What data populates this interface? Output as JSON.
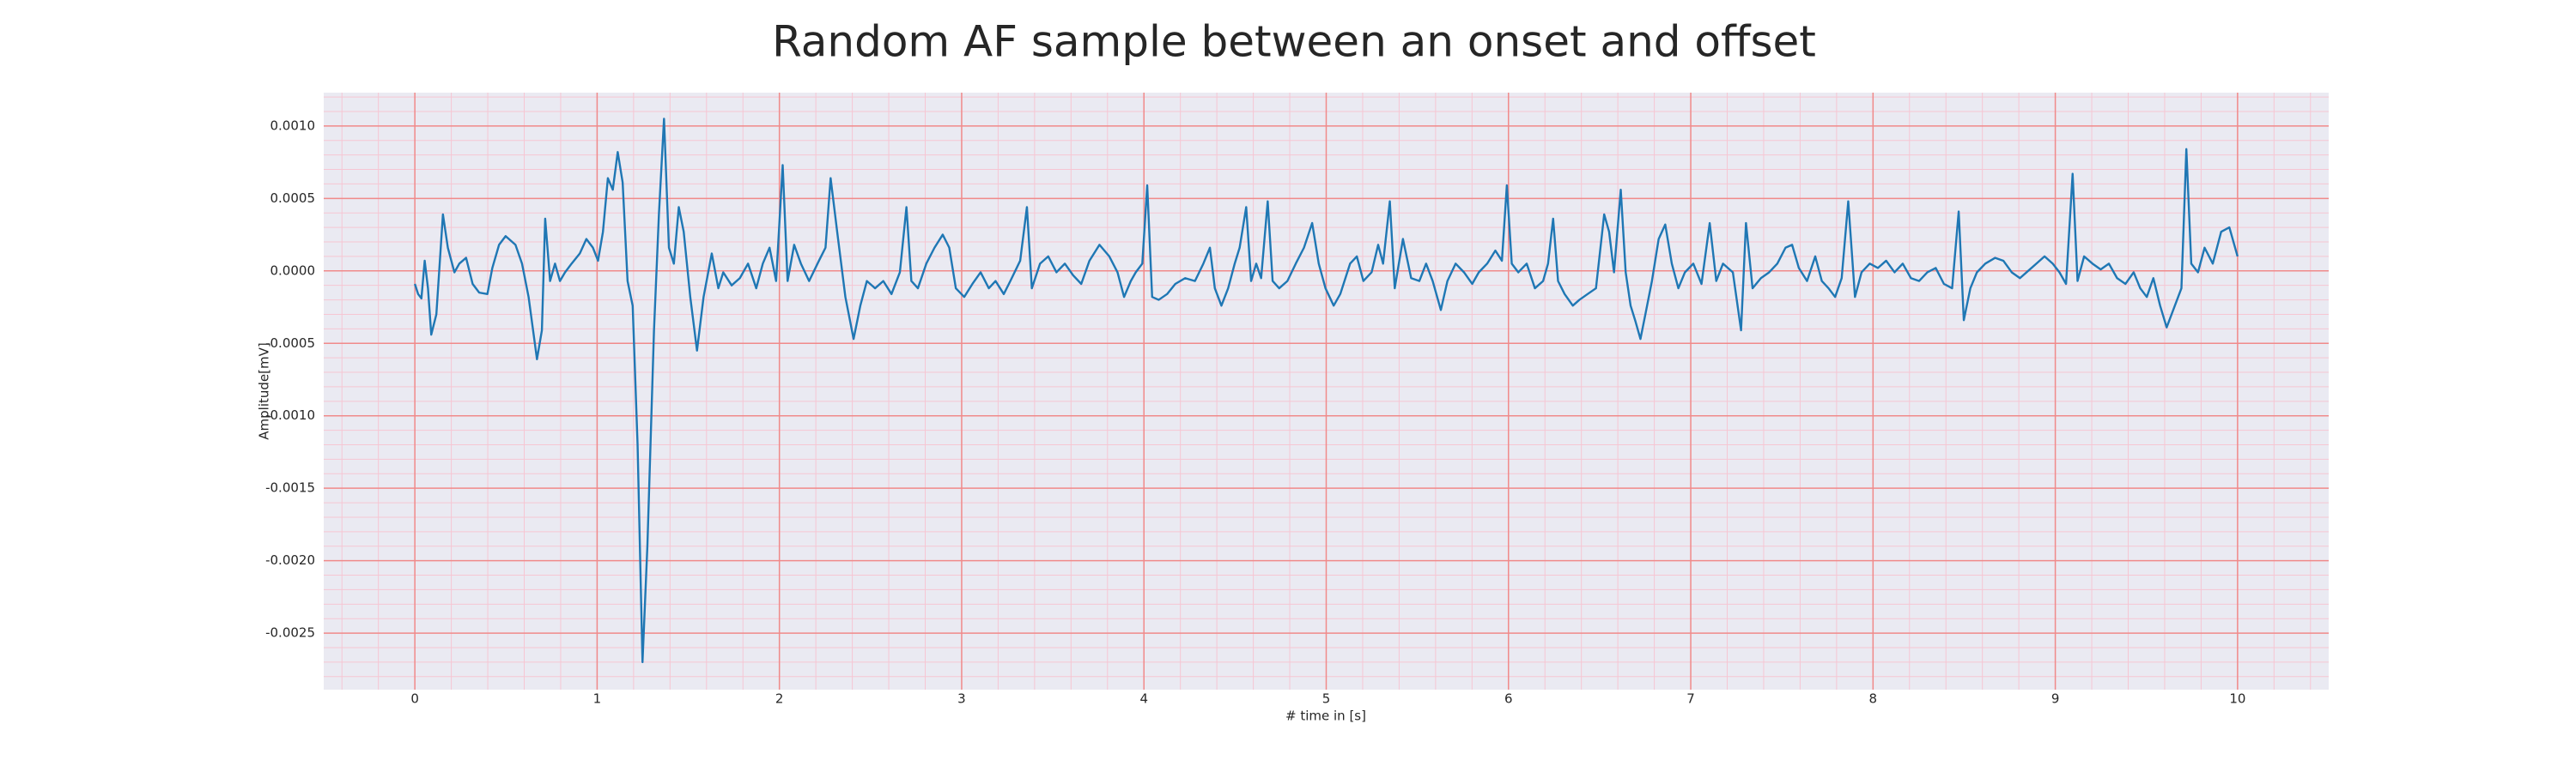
{
  "chart_data": {
    "type": "line",
    "title": "Random AF sample between an onset and offset",
    "xlabel": "# time in [s]",
    "ylabel": "Amplitude[mV]",
    "color": "#1f77b4",
    "grid": true,
    "minor_grid": true,
    "minor_divisions": 5,
    "xlim": [
      -0.5,
      10.5
    ],
    "ylim": [
      -0.00289,
      0.00123
    ],
    "xticks": [
      0,
      1,
      2,
      3,
      4,
      5,
      6,
      7,
      8,
      9,
      10
    ],
    "yticks": [
      {
        "value": -0.0025,
        "label": "-0.0025"
      },
      {
        "value": -0.002,
        "label": "-0.0020"
      },
      {
        "value": -0.0015,
        "label": "-0.0015"
      },
      {
        "value": -0.001,
        "label": "-0.0010"
      },
      {
        "value": -0.0005,
        "label": "-0.0005"
      },
      {
        "value": 0,
        "label": "0.0000"
      },
      {
        "value": 0.0005,
        "label": "0.0005"
      },
      {
        "value": 0.001,
        "label": "0.0010"
      }
    ],
    "x": [
      0,
      0.018,
      0.036,
      0.054,
      0.072,
      0.09,
      0.118,
      0.154,
      0.181,
      0.217,
      0.244,
      0.281,
      0.317,
      0.353,
      0.398,
      0.425,
      0.462,
      0.498,
      0.552,
      0.588,
      0.624,
      0.67,
      0.697,
      0.715,
      0.742,
      0.769,
      0.796,
      0.824,
      0.86,
      0.905,
      0.941,
      0.977,
      1.005,
      1.032,
      1.059,
      1.086,
      1.113,
      1.14,
      1.167,
      1.195,
      1.222,
      1.249,
      1.276,
      1.312,
      1.339,
      1.367,
      1.394,
      1.421,
      1.448,
      1.475,
      1.511,
      1.548,
      1.584,
      1.629,
      1.665,
      1.692,
      1.738,
      1.783,
      1.828,
      1.873,
      1.909,
      1.946,
      1.982,
      2.018,
      2.045,
      2.081,
      2.118,
      2.163,
      2.217,
      2.253,
      2.281,
      2.317,
      2.362,
      2.407,
      2.444,
      2.48,
      2.525,
      2.57,
      2.615,
      2.661,
      2.697,
      2.724,
      2.76,
      2.806,
      2.851,
      2.896,
      2.932,
      2.968,
      3.014,
      3.059,
      3.104,
      3.149,
      3.186,
      3.231,
      3.267,
      3.321,
      3.358,
      3.385,
      3.43,
      3.475,
      3.52,
      3.566,
      3.611,
      3.656,
      3.701,
      3.756,
      3.81,
      3.855,
      3.891,
      3.928,
      3.955,
      3.991,
      4.018,
      4.045,
      4.081,
      4.127,
      4.172,
      4.226,
      4.28,
      4.326,
      4.362,
      4.389,
      4.425,
      4.462,
      4.498,
      4.525,
      4.561,
      4.588,
      4.616,
      4.643,
      4.679,
      4.706,
      4.742,
      4.787,
      4.833,
      4.878,
      4.923,
      4.959,
      4.996,
      5.041,
      5.077,
      5.131,
      5.168,
      5.204,
      5.249,
      5.285,
      5.312,
      5.349,
      5.376,
      5.421,
      5.466,
      5.511,
      5.548,
      5.584,
      5.629,
      5.665,
      5.71,
      5.756,
      5.801,
      5.837,
      5.883,
      5.928,
      5.964,
      5.991,
      6.018,
      6.054,
      6.1,
      6.145,
      6.19,
      6.217,
      6.245,
      6.272,
      6.308,
      6.353,
      6.389,
      6.434,
      6.48,
      6.525,
      6.552,
      6.579,
      6.616,
      6.643,
      6.67,
      6.697,
      6.724,
      6.751,
      6.787,
      6.824,
      6.86,
      6.896,
      6.932,
      6.968,
      7.014,
      7.059,
      7.104,
      7.14,
      7.177,
      7.231,
      7.276,
      7.303,
      7.339,
      7.385,
      7.43,
      7.475,
      7.52,
      7.556,
      7.593,
      7.638,
      7.683,
      7.719,
      7.756,
      7.792,
      7.828,
      7.864,
      7.901,
      7.937,
      7.982,
      8.027,
      8.072,
      8.118,
      8.163,
      8.208,
      8.253,
      8.298,
      8.344,
      8.389,
      8.434,
      8.47,
      8.498,
      8.534,
      8.57,
      8.616,
      8.67,
      8.715,
      8.761,
      8.806,
      8.851,
      8.896,
      8.941,
      8.986,
      9.023,
      9.059,
      9.095,
      9.122,
      9.158,
      9.204,
      9.249,
      9.294,
      9.339,
      9.385,
      9.43,
      9.466,
      9.502,
      9.538,
      9.575,
      9.611,
      9.656,
      9.692,
      9.719,
      9.746,
      9.783,
      9.819,
      9.864,
      9.91,
      9.955,
      10.0
    ],
    "values": [
      -9e-05,
      -0.00016,
      -0.00019,
      7e-05,
      -0.00012,
      -0.00044,
      -0.0003,
      0.00039,
      0.00016,
      -1e-05,
      5e-05,
      9e-05,
      -9e-05,
      -0.00015,
      -0.00016,
      2e-05,
      0.00018,
      0.00024,
      0.00018,
      5e-05,
      -0.00018,
      -0.00061,
      -0.00041,
      0.00036,
      -7e-05,
      5e-05,
      -7e-05,
      -1e-05,
      5e-05,
      0.00012,
      0.00022,
      0.00016,
      7e-05,
      0.00027,
      0.00064,
      0.00056,
      0.00082,
      0.00061,
      -7e-05,
      -0.00024,
      -0.0012,
      -0.0027,
      -0.00189,
      -0.00041,
      0.00039,
      0.00105,
      0.00016,
      5e-05,
      0.00044,
      0.00027,
      -0.00018,
      -0.00055,
      -0.00018,
      0.00012,
      -0.00012,
      -1e-05,
      -0.0001,
      -5e-05,
      5e-05,
      -0.00012,
      5e-05,
      0.00016,
      -7e-05,
      0.00073,
      -7e-05,
      0.00018,
      5e-05,
      -7e-05,
      7e-05,
      0.00016,
      0.00064,
      0.00027,
      -0.00018,
      -0.00047,
      -0.00024,
      -7e-05,
      -0.00012,
      -7e-05,
      -0.00016,
      -1e-05,
      0.00044,
      -7e-05,
      -0.00012,
      5e-05,
      0.00016,
      0.00025,
      0.00016,
      -0.00012,
      -0.00018,
      -9e-05,
      -1e-05,
      -0.00012,
      -7e-05,
      -0.00016,
      -7e-05,
      7e-05,
      0.00044,
      -0.00012,
      5e-05,
      0.0001,
      -1e-05,
      5e-05,
      -3e-05,
      -9e-05,
      7e-05,
      0.00018,
      0.0001,
      -1e-05,
      -0.00018,
      -7e-05,
      -1e-05,
      5e-05,
      0.00059,
      -0.00018,
      -0.0002,
      -0.00016,
      -9e-05,
      -5e-05,
      -7e-05,
      5e-05,
      0.00016,
      -0.00012,
      -0.00024,
      -0.00012,
      5e-05,
      0.00016,
      0.00044,
      -7e-05,
      5e-05,
      -5e-05,
      0.00048,
      -7e-05,
      -0.00012,
      -7e-05,
      5e-05,
      0.00016,
      0.00033,
      5e-05,
      -0.00012,
      -0.00024,
      -0.00016,
      5e-05,
      0.0001,
      -7e-05,
      -1e-05,
      0.00018,
      5e-05,
      0.00048,
      -0.00012,
      0.00022,
      -5e-05,
      -7e-05,
      5e-05,
      -7e-05,
      -0.00027,
      -7e-05,
      5e-05,
      -1e-05,
      -9e-05,
      -1e-05,
      5e-05,
      0.00014,
      7e-05,
      0.00059,
      5e-05,
      -1e-05,
      5e-05,
      -0.00012,
      -7e-05,
      5e-05,
      0.00036,
      -7e-05,
      -0.00016,
      -0.00024,
      -0.0002,
      -0.00016,
      -0.00012,
      0.00039,
      0.00027,
      -1e-05,
      0.00056,
      -1e-05,
      -0.00024,
      -0.00035,
      -0.00047,
      -0.0003,
      -7e-05,
      0.00022,
      0.00032,
      5e-05,
      -0.00012,
      -1e-05,
      5e-05,
      -9e-05,
      0.00033,
      -7e-05,
      5e-05,
      -1e-05,
      -0.00041,
      0.00033,
      -0.00012,
      -5e-05,
      -1e-05,
      5e-05,
      0.00016,
      0.00018,
      2e-05,
      -7e-05,
      0.0001,
      -7e-05,
      -0.00012,
      -0.00018,
      -5e-05,
      0.00048,
      -0.00018,
      -1e-05,
      5e-05,
      2e-05,
      7e-05,
      -1e-05,
      5e-05,
      -5e-05,
      -7e-05,
      -1e-05,
      2e-05,
      -9e-05,
      -0.00012,
      0.00041,
      -0.00034,
      -0.00012,
      -1e-05,
      5e-05,
      9e-05,
      7e-05,
      -1e-05,
      -5e-05,
      0,
      5e-05,
      0.0001,
      5e-05,
      -1e-05,
      -9e-05,
      0.00067,
      -7e-05,
      0.0001,
      5e-05,
      1e-05,
      5e-05,
      -5e-05,
      -9e-05,
      -1e-05,
      -0.00012,
      -0.00018,
      -5e-05,
      -0.00024,
      -0.00039,
      -0.00024,
      -0.00012,
      0.00084,
      5e-05,
      -1e-05,
      0.00016,
      5e-05,
      0.00027,
      0.0003,
      0.0001
    ]
  }
}
